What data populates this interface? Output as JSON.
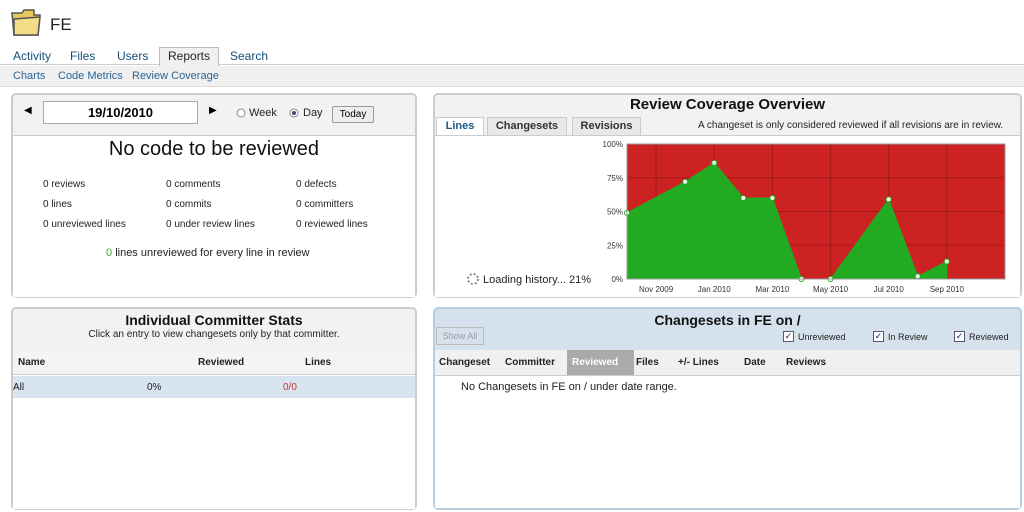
{
  "header": {
    "title": "FE"
  },
  "nav": {
    "tabs": [
      "Activity",
      "Files",
      "Users",
      "Reports",
      "Search"
    ],
    "subtabs": [
      "Charts",
      "Code Metrics",
      "Review Coverage"
    ]
  },
  "date_panel": {
    "date": "19/10/2010",
    "week": "Week",
    "day": "Day",
    "today": "Today",
    "heading": "No code to be reviewed",
    "stats": [
      [
        "0 reviews",
        "0 comments",
        "0 defects"
      ],
      [
        "0 lines",
        "0 commits",
        "0 committers"
      ],
      [
        "0 unreviewed lines",
        "0 under review lines",
        "0 reviewed lines"
      ]
    ],
    "ratio_value": "0",
    "ratio_text": "lines unreviewed for every line in review"
  },
  "committers": {
    "title": "Individual Committer Stats",
    "subtitle": "Click an entry to view changesets only by that committer.",
    "columns": [
      "Name",
      "Reviewed",
      "Lines"
    ],
    "rows": [
      [
        "All",
        "0%",
        "0/0"
      ]
    ]
  },
  "changesets": {
    "show_all": "Show All",
    "title": "Changesets in FE on /",
    "filters": [
      "Unreviewed",
      "In Review",
      "Reviewed"
    ],
    "columns": [
      "Changeset",
      "Committer",
      "Reviewed",
      "Files",
      "+/- Lines",
      "Date",
      "Reviews"
    ],
    "empty": "No Changesets in FE on / under date range."
  },
  "chart_data": {
    "type": "area",
    "title": "Review Coverage Overview",
    "tabs": [
      "Lines",
      "Changesets",
      "Revisions"
    ],
    "note": "A changeset is only considered reviewed if all revisions are in review.",
    "loading": "Loading history... 21%",
    "x": [
      "2009-10",
      "2009-12",
      "2010-01",
      "2010-02",
      "2010-03",
      "2010-04",
      "2010-05",
      "2010-07",
      "2010-08",
      "2010-09"
    ],
    "values": [
      49,
      72,
      86,
      60,
      60,
      0,
      0,
      59,
      2,
      13
    ],
    "color": "#22aa22",
    "background": "#cc2222",
    "xlim": [
      "2009-10",
      "2010-11"
    ],
    "xticks": [
      {
        "value": "2009-11",
        "label": "Nov 2009"
      },
      {
        "value": "2010-01",
        "label": "Jan 2010"
      },
      {
        "value": "2010-03",
        "label": "Mar 2010"
      },
      {
        "value": "2010-05",
        "label": "May 2010"
      },
      {
        "value": "2010-07",
        "label": "Jul 2010"
      },
      {
        "value": "2010-09",
        "label": "Sep 2010"
      }
    ],
    "ylim": [
      0,
      100
    ],
    "yticks": [
      {
        "value": 0,
        "label": "0%"
      },
      {
        "value": 25,
        "label": "25%"
      },
      {
        "value": 50,
        "label": "50%"
      },
      {
        "value": 75,
        "label": "75%"
      },
      {
        "value": 100,
        "label": "100%"
      }
    ],
    "grid": true
  }
}
